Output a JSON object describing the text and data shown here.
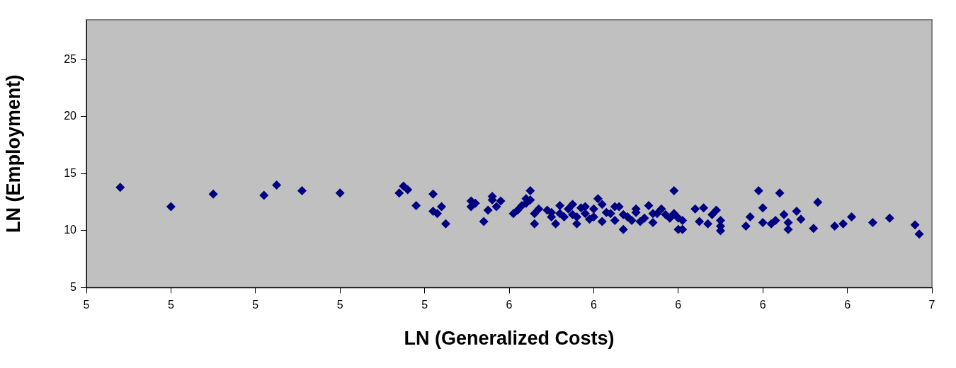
{
  "chart_data": {
    "type": "scatter",
    "xlabel": "LN (Generalized Costs)",
    "ylabel": "LN (Employment)",
    "xlim": [
      4.6,
      6.6
    ],
    "xticks": [
      {
        "value": 4.6,
        "label": "5"
      },
      {
        "value": 4.8,
        "label": "5"
      },
      {
        "value": 5.0,
        "label": "5"
      },
      {
        "value": 5.2,
        "label": "5"
      },
      {
        "value": 5.4,
        "label": "5"
      },
      {
        "value": 5.6,
        "label": "6"
      },
      {
        "value": 5.8,
        "label": "6"
      },
      {
        "value": 6.0,
        "label": "6"
      },
      {
        "value": 6.2,
        "label": "6"
      },
      {
        "value": 6.4,
        "label": "6"
      },
      {
        "value": 6.6,
        "label": "7"
      }
    ],
    "ylim": [
      5,
      28.5
    ],
    "yticks": [
      5,
      10,
      15,
      20,
      25
    ],
    "grid": false,
    "legend": false,
    "marker": "diamond",
    "series": [
      {
        "color": "#000080",
        "x": [
          4.68,
          4.8,
          4.9,
          5.02,
          5.05,
          5.11,
          5.2,
          5.34,
          5.35,
          5.36,
          5.38,
          5.42,
          5.44,
          5.42,
          5.43,
          5.45,
          5.51,
          5.51,
          5.52,
          5.54,
          5.55,
          5.56,
          5.56,
          5.57,
          5.58,
          5.61,
          5.62,
          5.63,
          5.64,
          5.64,
          5.65,
          5.65,
          5.66,
          5.66,
          5.67,
          5.69,
          5.7,
          5.7,
          5.71,
          5.72,
          5.72,
          5.73,
          5.74,
          5.75,
          5.75,
          5.76,
          5.76,
          5.77,
          5.78,
          5.78,
          5.79,
          5.8,
          5.8,
          5.81,
          5.82,
          5.82,
          5.83,
          5.84,
          5.85,
          5.85,
          5.86,
          5.87,
          5.87,
          5.88,
          5.89,
          5.9,
          5.9,
          5.91,
          5.92,
          5.93,
          5.94,
          5.94,
          5.95,
          5.96,
          5.97,
          5.98,
          5.99,
          5.99,
          6.0,
          6.0,
          6.01,
          6.01,
          6.04,
          6.06,
          6.09,
          6.05,
          6.07,
          6.08,
          6.1,
          6.1,
          6.1,
          6.16,
          6.17,
          6.19,
          6.2,
          6.2,
          6.22,
          6.23,
          6.24,
          6.25,
          6.26,
          6.26,
          6.28,
          6.29,
          6.32,
          6.33,
          6.37,
          6.39,
          6.41,
          6.46,
          6.5,
          6.56,
          6.57
        ],
        "values": [
          13.8,
          12.1,
          13.2,
          13.1,
          14.0,
          13.5,
          13.3,
          13.3,
          13.9,
          13.6,
          12.2,
          13.2,
          12.1,
          11.7,
          11.5,
          10.6,
          12.6,
          12.1,
          12.4,
          10.8,
          11.8,
          12.7,
          13.0,
          12.1,
          12.6,
          11.5,
          11.8,
          12.2,
          12.8,
          12.4,
          13.5,
          12.7,
          11.5,
          10.6,
          11.9,
          11.8,
          11.6,
          11.2,
          10.6,
          11.5,
          12.2,
          11.2,
          11.9,
          12.3,
          11.4,
          10.6,
          11.2,
          12.0,
          11.5,
          12.1,
          11.0,
          11.2,
          11.9,
          12.8,
          12.3,
          10.8,
          11.6,
          11.5,
          10.9,
          12.1,
          12.1,
          11.4,
          10.1,
          11.2,
          10.9,
          11.6,
          11.9,
          10.8,
          11.1,
          12.2,
          11.5,
          10.7,
          11.5,
          11.9,
          11.4,
          11.1,
          13.5,
          11.5,
          11.1,
          10.1,
          10.1,
          10.9,
          11.9,
          12.0,
          11.8,
          10.8,
          10.6,
          11.4,
          10.9,
          10.0,
          10.4,
          10.4,
          11.2,
          13.5,
          12.0,
          10.7,
          10.6,
          10.9,
          13.3,
          11.4,
          10.7,
          10.1,
          11.7,
          11.0,
          10.2,
          12.5,
          10.4,
          10.6,
          11.2,
          10.7,
          11.1,
          10.5,
          9.7
        ]
      }
    ]
  }
}
